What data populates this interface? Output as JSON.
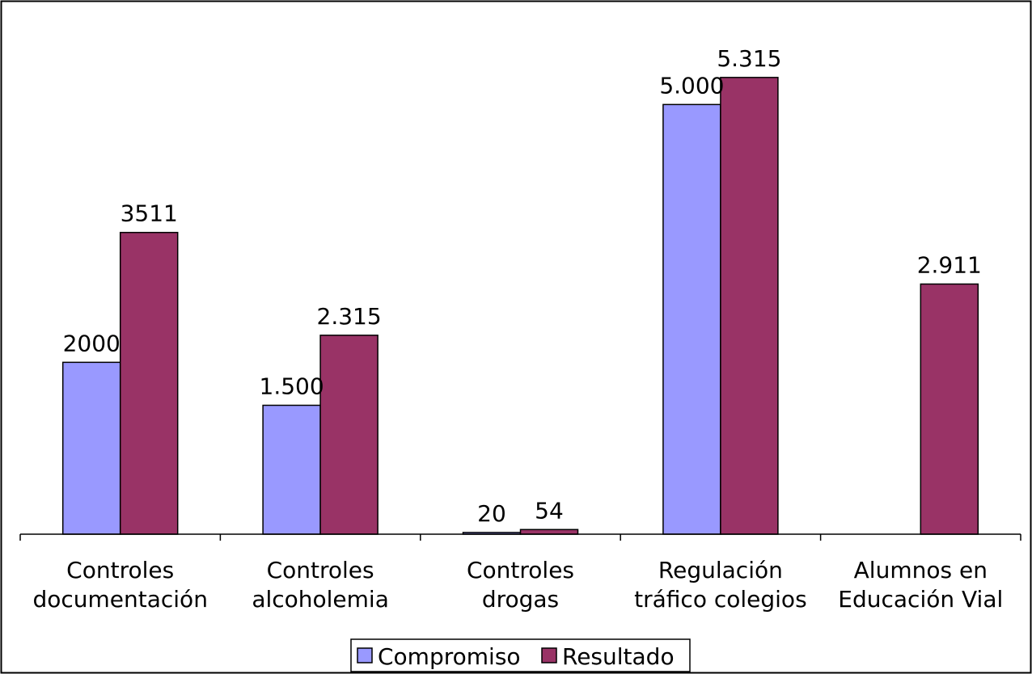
{
  "chart_data": {
    "type": "bar",
    "categories": [
      [
        "Controles",
        "documentación"
      ],
      [
        "Controles",
        "alcoholemia"
      ],
      [
        "Controles",
        "drogas"
      ],
      [
        "Regulación",
        "tráfico colegios"
      ],
      [
        "Alumnos en",
        "Educación Vial"
      ]
    ],
    "series": [
      {
        "name": "Compromiso",
        "color": "#9999ff",
        "values": [
          2000,
          1500,
          20,
          5000,
          null
        ],
        "labels": [
          "2000",
          "1.500",
          "20",
          "5.000",
          ""
        ]
      },
      {
        "name": "Resultado",
        "color": "#993366",
        "values": [
          3511,
          2315,
          54,
          5315,
          2911
        ],
        "labels": [
          "3511",
          "2.315",
          "54",
          "5.315",
          "2.911"
        ]
      }
    ],
    "ylim": [
      0,
      6000
    ],
    "grid": false,
    "legend_position": "bottom"
  }
}
